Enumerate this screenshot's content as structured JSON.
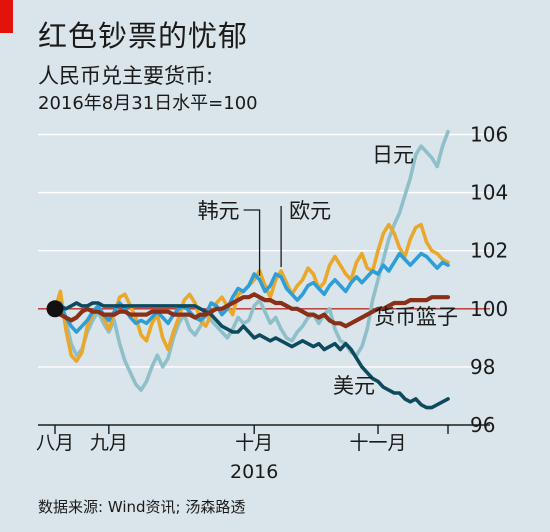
{
  "header": {
    "title": "红色钞票的忧郁",
    "subtitle": "人民币兑主要货币:",
    "subtitle2": "2016年8月31日水平=100"
  },
  "source": "数据来源: Wind资讯; 汤森路透",
  "chart_data": {
    "type": "line",
    "title": "红色钞票的忧郁",
    "xlabel": "2016",
    "ylabel": "",
    "ylim": [
      96,
      106.5
    ],
    "yticks": [
      96,
      98,
      100,
      102,
      104,
      106
    ],
    "reference_line": 100,
    "x_ticks": [
      {
        "label": "八月",
        "index": 0
      },
      {
        "label": "九月",
        "index": 10
      },
      {
        "label": "十月",
        "index": 37
      },
      {
        "label": "十一月",
        "index": 60
      }
    ],
    "year_label": "2016",
    "grid": true,
    "series": [
      {
        "name": "日元",
        "color": "#8fbfc9",
        "values": [
          100,
          100.4,
          99.6,
          98.8,
          98.4,
          98.6,
          99.2,
          99.6,
          99.9,
          99.5,
          99.2,
          99.6,
          98.8,
          98.2,
          97.8,
          97.4,
          97.2,
          97.5,
          98.0,
          98.4,
          98.0,
          98.3,
          99.0,
          99.5,
          99.8,
          99.3,
          99.1,
          99.4,
          99.8,
          99.6,
          99.4,
          99.2,
          99.0,
          99.3,
          99.7,
          99.5,
          99.6,
          100.1,
          100.3,
          99.9,
          99.5,
          99.7,
          99.3,
          99.0,
          98.9,
          99.2,
          99.4,
          99.7,
          99.8,
          99.5,
          99.8,
          100.0,
          99.3,
          98.9,
          98.8,
          98.5,
          98.4,
          98.7,
          99.3,
          100.3,
          101.0,
          101.7,
          102.4,
          102.9,
          103.3,
          103.9,
          104.5,
          105.3,
          105.6,
          105.4,
          105.2,
          104.9,
          105.6,
          106.1
        ]
      },
      {
        "name": "欧元",
        "color": "#e9a82b",
        "values": [
          100,
          100.6,
          99.3,
          98.4,
          98.2,
          98.5,
          99.4,
          99.8,
          100.1,
          99.7,
          99.3,
          99.8,
          100.4,
          100.5,
          100.1,
          99.7,
          99.1,
          98.9,
          99.5,
          99.8,
          99.0,
          98.6,
          99.2,
          99.7,
          100.3,
          100.5,
          100.2,
          99.6,
          99.4,
          99.8,
          100.2,
          100.4,
          100.1,
          99.8,
          100.5,
          100.6,
          100.8,
          101.0,
          101.3,
          100.8,
          100.4,
          101.0,
          101.3,
          100.9,
          100.5,
          100.8,
          101.0,
          101.4,
          101.2,
          100.7,
          100.9,
          101.5,
          101.8,
          101.5,
          101.2,
          101.0,
          101.6,
          101.9,
          101.4,
          101.3,
          102.0,
          102.6,
          102.9,
          102.6,
          102.1,
          101.8,
          102.4,
          102.8,
          102.9,
          102.3,
          102.0,
          101.9,
          101.7,
          101.6
        ]
      },
      {
        "name": "韩元",
        "color": "#2e9fd6",
        "values": [
          100,
          100.2,
          99.7,
          99.4,
          99.2,
          99.4,
          99.6,
          99.9,
          100.1,
          99.8,
          99.6,
          99.9,
          100.2,
          100.0,
          99.7,
          99.5,
          99.6,
          99.5,
          99.7,
          99.9,
          99.7,
          99.5,
          99.8,
          100.0,
          100.1,
          99.9,
          99.7,
          99.6,
          99.8,
          100.2,
          100.1,
          99.8,
          100.0,
          100.4,
          100.7,
          100.6,
          100.8,
          101.2,
          101.0,
          100.6,
          100.8,
          101.2,
          101.1,
          100.7,
          100.5,
          100.3,
          100.5,
          100.8,
          100.9,
          100.7,
          100.5,
          100.8,
          101.0,
          100.8,
          100.6,
          100.9,
          101.1,
          100.9,
          101.1,
          101.3,
          101.2,
          101.5,
          101.3,
          101.6,
          101.9,
          101.7,
          101.5,
          101.7,
          101.9,
          101.8,
          101.6,
          101.4,
          101.6,
          101.5
        ]
      },
      {
        "name": "美元",
        "color": "#0e4a5e",
        "values": [
          100,
          100.1,
          100.0,
          100.1,
          100.2,
          100.1,
          100.1,
          100.2,
          100.2,
          100.1,
          100.1,
          100.1,
          100.1,
          100.1,
          100.1,
          100.1,
          100.1,
          100.1,
          100.1,
          100.1,
          100.1,
          100.1,
          100.1,
          100.1,
          100.1,
          100.1,
          100.1,
          100.0,
          99.9,
          99.8,
          99.6,
          99.4,
          99.3,
          99.2,
          99.2,
          99.4,
          99.2,
          99.0,
          99.1,
          99.0,
          98.9,
          99.0,
          98.9,
          98.8,
          98.7,
          98.8,
          98.9,
          98.8,
          98.7,
          98.8,
          98.6,
          98.7,
          98.8,
          98.6,
          98.8,
          98.6,
          98.3,
          98.0,
          97.8,
          97.6,
          97.5,
          97.3,
          97.2,
          97.1,
          97.1,
          96.9,
          96.8,
          96.9,
          96.7,
          96.6,
          96.6,
          96.7,
          96.8,
          96.9
        ]
      },
      {
        "name": "货币篮子",
        "color": "#8a2f18",
        "values": [
          100,
          99.8,
          99.7,
          99.6,
          99.7,
          99.9,
          100.0,
          99.9,
          99.9,
          99.8,
          99.8,
          99.8,
          99.9,
          99.9,
          99.8,
          99.8,
          99.8,
          99.8,
          99.9,
          99.9,
          99.9,
          99.9,
          99.8,
          99.8,
          99.8,
          99.8,
          99.7,
          99.8,
          99.8,
          99.9,
          100.0,
          100.0,
          100.1,
          100.2,
          100.3,
          100.4,
          100.4,
          100.5,
          100.4,
          100.3,
          100.3,
          100.2,
          100.2,
          100.1,
          100.0,
          100.0,
          99.9,
          99.8,
          99.8,
          99.7,
          99.8,
          99.6,
          99.5,
          99.5,
          99.4,
          99.5,
          99.6,
          99.7,
          99.8,
          99.9,
          100.0,
          100.0,
          100.1,
          100.2,
          100.2,
          100.2,
          100.3,
          100.3,
          100.3,
          100.3,
          100.4,
          100.4,
          100.4,
          100.4
        ]
      }
    ],
    "annotations": [
      "韩元",
      "欧元",
      "日元",
      "美元",
      "货币篮子"
    ]
  }
}
